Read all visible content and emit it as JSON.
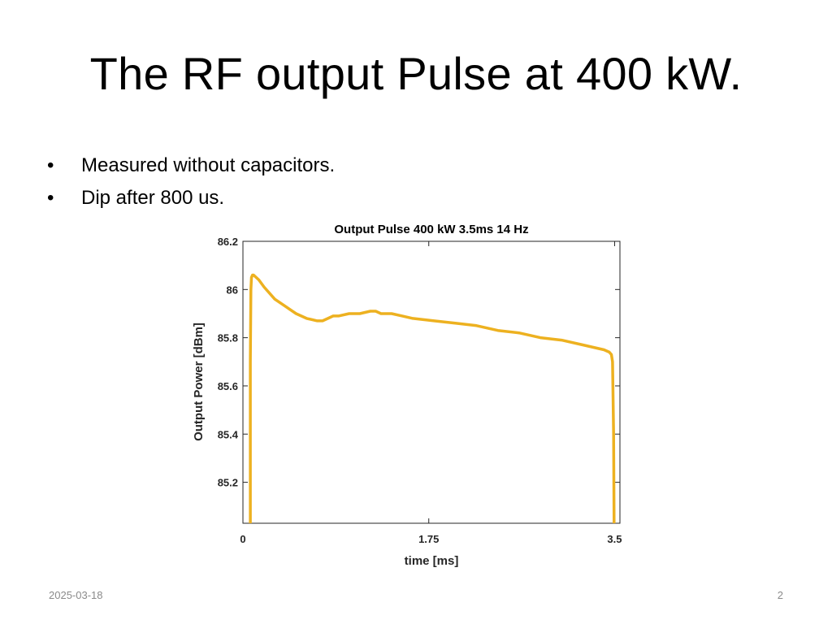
{
  "slide": {
    "title": "The RF output Pulse at 400 kW.",
    "bullet_marker": "•",
    "bullets": [
      "Measured without capacitors.",
      "Dip after 800 us."
    ],
    "footer_date": "2025-03-18",
    "slide_number": "2"
  },
  "colors": {
    "trace": "#EDB120",
    "axes": "#262626"
  },
  "chart_data": {
    "type": "line",
    "title": "Output Pulse 400 kW 3.5ms 14 Hz",
    "xlabel": "time [ms]",
    "ylabel": "Output Power [dBm]",
    "xlim": [
      0,
      3.55
    ],
    "ylim": [
      85.03,
      86.2
    ],
    "xticks": [
      0,
      1.75,
      3.5
    ],
    "xtick_labels": [
      "0",
      "1.75",
      "3.5"
    ],
    "yticks": [
      85.2,
      85.4,
      85.6,
      85.8,
      86,
      86.2
    ],
    "ytick_labels": [
      "85.2",
      "85.4",
      "85.6",
      "85.8",
      "86",
      "86.2"
    ],
    "grid": false,
    "series": [
      {
        "x": [
          0.07,
          0.07,
          0.075,
          0.08,
          0.09,
          0.1,
          0.15,
          0.2,
          0.3,
          0.4,
          0.5,
          0.6,
          0.7,
          0.75,
          0.8,
          0.85,
          0.9,
          1.0,
          1.1,
          1.2,
          1.25,
          1.3,
          1.4,
          1.5,
          1.6,
          1.8,
          2.0,
          2.2,
          2.4,
          2.6,
          2.8,
          3.0,
          3.2,
          3.4,
          3.45,
          3.47,
          3.48,
          3.49,
          3.495
        ],
        "y": [
          85.03,
          85.7,
          86.0,
          86.05,
          86.06,
          86.06,
          86.04,
          86.01,
          85.96,
          85.93,
          85.9,
          85.88,
          85.87,
          85.87,
          85.88,
          85.89,
          85.89,
          85.9,
          85.9,
          85.91,
          85.91,
          85.9,
          85.9,
          85.89,
          85.88,
          85.87,
          85.86,
          85.85,
          85.83,
          85.82,
          85.8,
          85.79,
          85.77,
          85.75,
          85.74,
          85.73,
          85.7,
          85.4,
          85.03
        ]
      }
    ]
  }
}
